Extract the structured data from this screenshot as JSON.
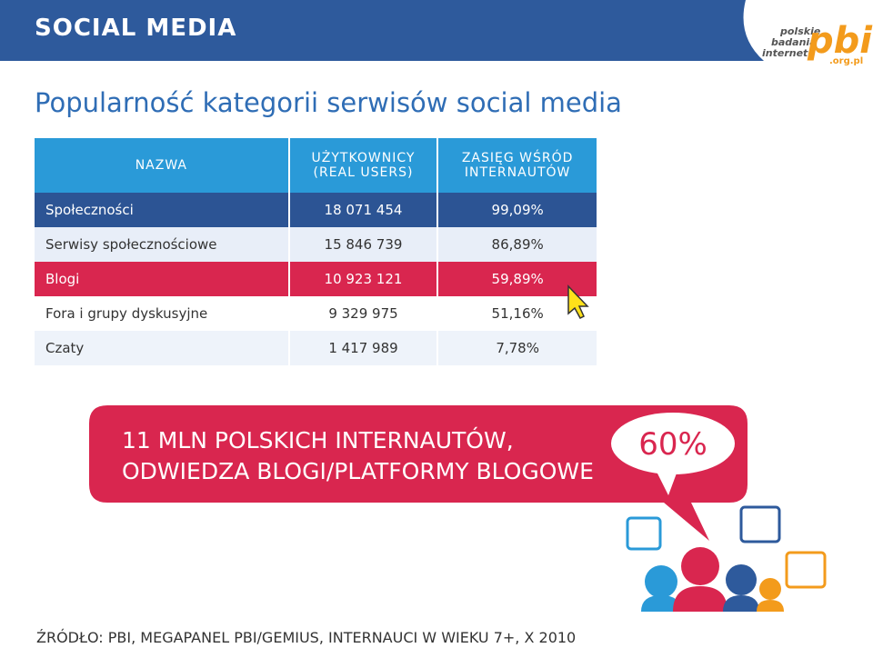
{
  "header": {
    "title": "SOCIAL MEDIA",
    "logo": {
      "line1": "polskie",
      "line2": "badania",
      "line3": "internetu",
      "mark": "pbi",
      "domain": ".org.pl"
    }
  },
  "title": "Popularność kategorii serwisów social media",
  "table": {
    "columns": [
      "NAZWA",
      "UŻYTKOWNICY\n(REAL USERS)",
      "ZASIĘG WŚRÓD\nINTERNAUTÓW"
    ],
    "rows": [
      [
        "Społeczności",
        "18 071 454",
        "99,09%"
      ],
      [
        "Serwisy społecznościowe",
        "15 846 739",
        "86,89%"
      ],
      [
        "Blogi",
        "10 923 121",
        "59,89%"
      ],
      [
        "Fora i grupy dyskusyjne",
        "9 329 975",
        "51,16%"
      ],
      [
        "Czaty",
        "1 417 989",
        "7,78%"
      ]
    ]
  },
  "banner": {
    "line1": "11 MLN POLSKICH INTERNAUTÓW,",
    "line2": "ODWIEDZA BLOGI/PLATFORMY BLOGOWE",
    "percent": "60%"
  },
  "source": "ŹRÓDŁO: PBI, MEGAPANEL PBI/GEMIUS, INTERNAUCI W WIEKU 7+, X 2010"
}
